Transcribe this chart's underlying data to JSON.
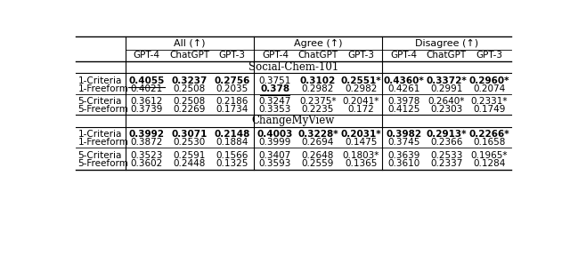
{
  "col_groups": [
    "All (↑)",
    "Agree (↑)",
    "Disagree (↑)"
  ],
  "sub_cols": [
    "GPT-4",
    "ChatGPT",
    "GPT-3"
  ],
  "section1": "Social-Chem-101",
  "section2": "ChangeMyView",
  "rows": {
    "sc101": {
      "1-Criteria": {
        "all": [
          "0.4055",
          "0.3237",
          "0.2756"
        ],
        "agree": [
          "0.3751",
          "0.3102",
          "0.2551*"
        ],
        "disagree": [
          "0.4360*",
          "0.3372*",
          "0.2960*"
        ],
        "all_bold": [
          true,
          true,
          true
        ],
        "agree_bold": [
          false,
          true,
          true
        ],
        "disagree_bold": [
          true,
          true,
          true
        ],
        "all_underline": [
          true,
          false,
          false
        ],
        "agree_underline": [
          false,
          false,
          false
        ],
        "disagree_underline": [
          false,
          false,
          false
        ]
      },
      "1-Freeform": {
        "all": [
          "0.4021",
          "0.2508",
          "0.2035"
        ],
        "agree": [
          "0.378",
          "0.2982",
          "0.2982"
        ],
        "disagree": [
          "0.4261",
          "0.2991",
          "0.2074"
        ],
        "all_bold": [
          false,
          false,
          false
        ],
        "agree_bold": [
          true,
          false,
          false
        ],
        "disagree_bold": [
          false,
          false,
          false
        ],
        "all_underline": [
          false,
          false,
          false
        ],
        "agree_underline": [
          true,
          false,
          false
        ],
        "disagree_underline": [
          false,
          false,
          false
        ]
      },
      "5-Criteria": {
        "all": [
          "0.3612",
          "0.2508",
          "0.2186"
        ],
        "agree": [
          "0.3247",
          "0.2375*",
          "0.2041*"
        ],
        "disagree": [
          "0.3978",
          "0.2640*",
          "0.2331*"
        ],
        "all_bold": [
          false,
          false,
          false
        ],
        "agree_bold": [
          false,
          false,
          false
        ],
        "disagree_bold": [
          false,
          false,
          false
        ],
        "all_underline": [
          false,
          false,
          false
        ],
        "agree_underline": [
          false,
          false,
          false
        ],
        "disagree_underline": [
          false,
          false,
          false
        ]
      },
      "5-Freeform": {
        "all": [
          "0.3739",
          "0.2269",
          "0.1734"
        ],
        "agree": [
          "0.3353",
          "0.2235",
          "0.172"
        ],
        "disagree": [
          "0.4125",
          "0.2303",
          "0.1749"
        ],
        "all_bold": [
          false,
          false,
          false
        ],
        "agree_bold": [
          false,
          false,
          false
        ],
        "disagree_bold": [
          false,
          false,
          false
        ],
        "all_underline": [
          false,
          false,
          false
        ],
        "agree_underline": [
          false,
          false,
          false
        ],
        "disagree_underline": [
          false,
          false,
          false
        ]
      }
    },
    "cmv": {
      "1-Criteria": {
        "all": [
          "0.3992",
          "0.3071",
          "0.2148"
        ],
        "agree": [
          "0.4003",
          "0.3228*",
          "0.2031*"
        ],
        "disagree": [
          "0.3982",
          "0.2913*",
          "0.2266*"
        ],
        "all_bold": [
          true,
          true,
          true
        ],
        "agree_bold": [
          true,
          true,
          true
        ],
        "disagree_bold": [
          true,
          true,
          true
        ],
        "all_underline": [
          false,
          false,
          false
        ],
        "agree_underline": [
          false,
          false,
          false
        ],
        "disagree_underline": [
          false,
          false,
          false
        ]
      },
      "1-Freeform": {
        "all": [
          "0.3872",
          "0.2530",
          "0.1884"
        ],
        "agree": [
          "0.3999",
          "0.2694",
          "0.1475"
        ],
        "disagree": [
          "0.3745",
          "0.2366",
          "0.1658"
        ],
        "all_bold": [
          false,
          false,
          false
        ],
        "agree_bold": [
          false,
          false,
          false
        ],
        "disagree_bold": [
          false,
          false,
          false
        ],
        "all_underline": [
          false,
          false,
          false
        ],
        "agree_underline": [
          false,
          false,
          false
        ],
        "disagree_underline": [
          false,
          false,
          false
        ]
      },
      "5-Criteria": {
        "all": [
          "0.3523",
          "0.2591",
          "0.1566"
        ],
        "agree": [
          "0.3407",
          "0.2648",
          "0.1803*"
        ],
        "disagree": [
          "0.3639",
          "0.2533",
          "0.1965*"
        ],
        "all_bold": [
          false,
          false,
          false
        ],
        "agree_bold": [
          false,
          false,
          false
        ],
        "disagree_bold": [
          false,
          false,
          false
        ],
        "all_underline": [
          false,
          false,
          false
        ],
        "agree_underline": [
          false,
          false,
          false
        ],
        "disagree_underline": [
          false,
          false,
          false
        ]
      },
      "5-Freeform": {
        "all": [
          "0.3602",
          "0.2448",
          "0.1325"
        ],
        "agree": [
          "0.3593",
          "0.2559",
          "0.1365"
        ],
        "disagree": [
          "0.3610",
          "0.2337",
          "0.1284"
        ],
        "all_bold": [
          false,
          false,
          false
        ],
        "agree_bold": [
          false,
          false,
          false
        ],
        "disagree_bold": [
          false,
          false,
          false
        ],
        "all_underline": [
          false,
          false,
          false
        ],
        "agree_underline": [
          false,
          false,
          false
        ],
        "disagree_underline": [
          false,
          false,
          false
        ]
      }
    }
  },
  "bg_color": "#ffffff",
  "text_color": "#000000",
  "font_size": 7.5,
  "header_font_size": 8.0,
  "section_font_size": 8.5
}
